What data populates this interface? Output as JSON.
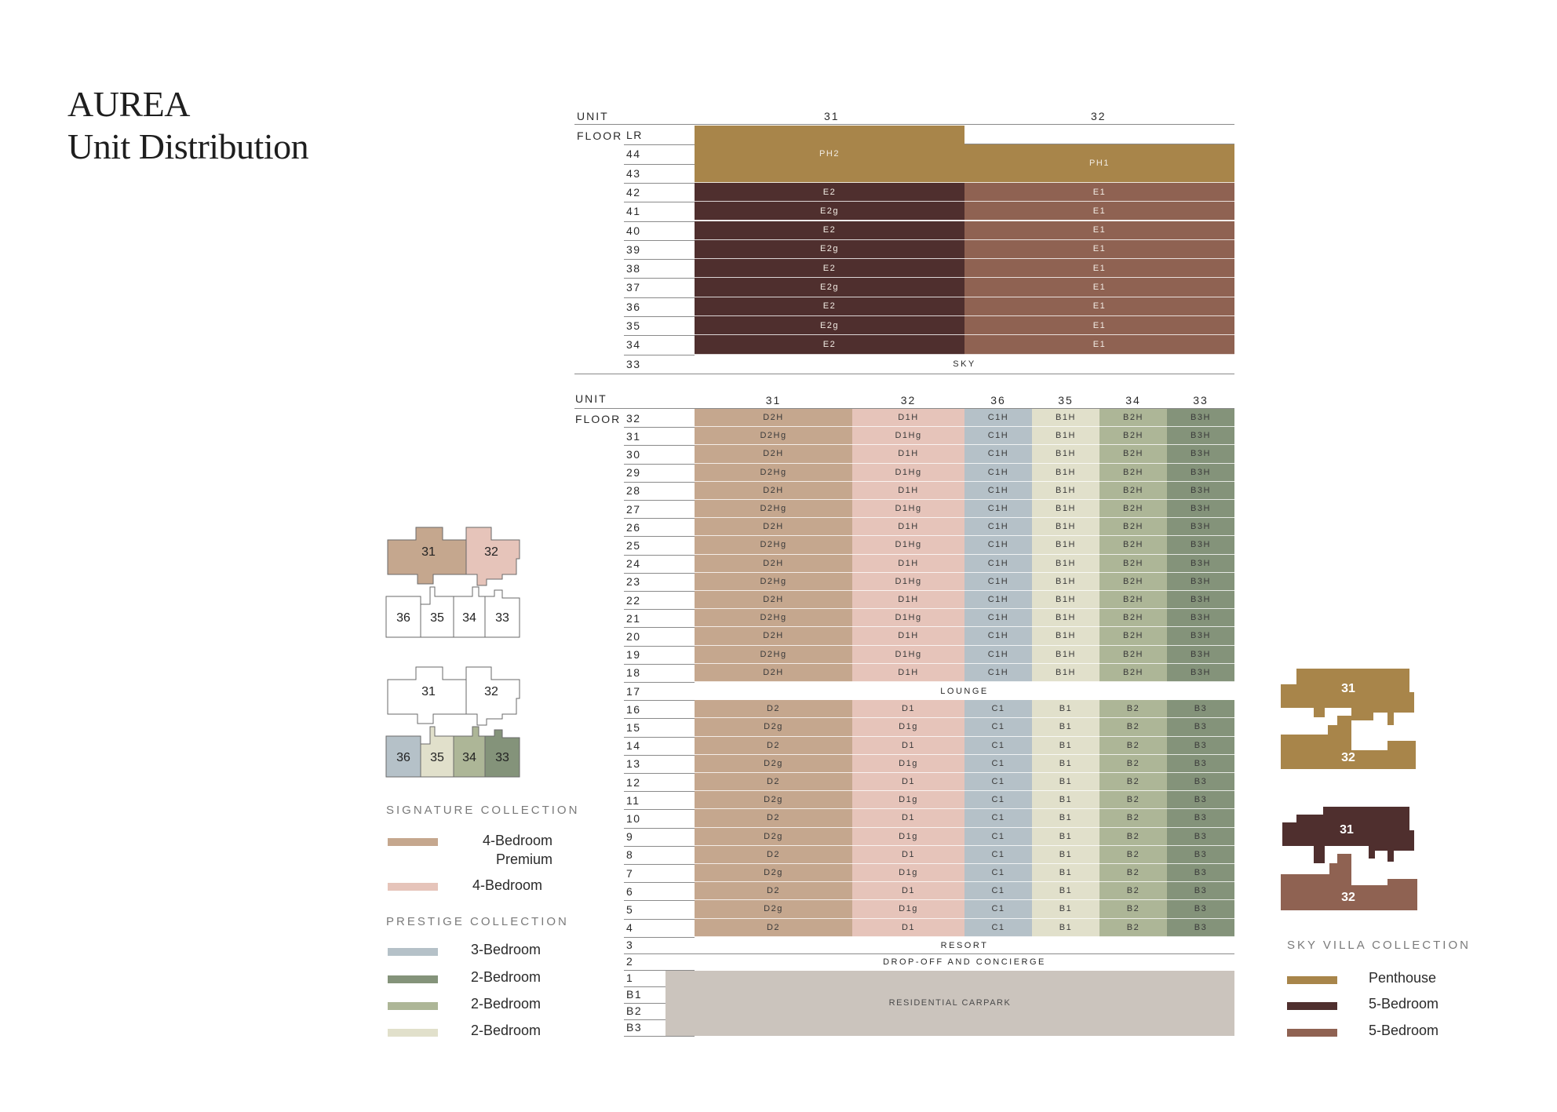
{
  "title": {
    "line1": "AUREA",
    "line2": "Unit Distribution"
  },
  "colors": {
    "ph": "#a8854a",
    "e2": "#4f2f2e",
    "e1": "#8f6252",
    "d2": "#c5a78e",
    "d1": "#e6c4ba",
    "c1": "#b5c1c8",
    "b1": "#e1e0cb",
    "b2": "#adb697",
    "b3": "#84937a",
    "carpark": "#cbc4bd"
  },
  "upper_table": {
    "unit_label": "UNIT",
    "floor_label": "FLOOR",
    "units": [
      "31",
      "32"
    ],
    "floors": [
      "LR",
      "44",
      "43",
      "42",
      "41",
      "40",
      "39",
      "38",
      "37",
      "36",
      "35",
      "34",
      "33"
    ],
    "penthouse": [
      "PH2",
      "PH1"
    ],
    "rows": [
      {
        "floor": "42",
        "u31": "E2",
        "u32": "E1"
      },
      {
        "floor": "41",
        "u31": "E2g",
        "u32": "E1"
      },
      {
        "floor": "40",
        "u31": "E2",
        "u32": "E1"
      },
      {
        "floor": "39",
        "u31": "E2g",
        "u32": "E1"
      },
      {
        "floor": "38",
        "u31": "E2",
        "u32": "E1"
      },
      {
        "floor": "37",
        "u31": "E2g",
        "u32": "E1"
      },
      {
        "floor": "36",
        "u31": "E2",
        "u32": "E1"
      },
      {
        "floor": "35",
        "u31": "E2g",
        "u32": "E1"
      },
      {
        "floor": "34",
        "u31": "E2",
        "u32": "E1"
      }
    ],
    "sky_label": "SKY"
  },
  "lower_table": {
    "unit_label": "UNIT",
    "floor_label": "FLOOR",
    "units": [
      "31",
      "32",
      "36",
      "35",
      "34",
      "33"
    ],
    "upper_rows": [
      {
        "floor": "32",
        "cells": [
          "D2H",
          "D1H",
          "C1H",
          "B1H",
          "B2H",
          "B3H"
        ]
      },
      {
        "floor": "31",
        "cells": [
          "D2Hg",
          "D1Hg",
          "C1H",
          "B1H",
          "B2H",
          "B3H"
        ]
      },
      {
        "floor": "30",
        "cells": [
          "D2H",
          "D1H",
          "C1H",
          "B1H",
          "B2H",
          "B3H"
        ]
      },
      {
        "floor": "29",
        "cells": [
          "D2Hg",
          "D1Hg",
          "C1H",
          "B1H",
          "B2H",
          "B3H"
        ]
      },
      {
        "floor": "28",
        "cells": [
          "D2H",
          "D1H",
          "C1H",
          "B1H",
          "B2H",
          "B3H"
        ]
      },
      {
        "floor": "27",
        "cells": [
          "D2Hg",
          "D1Hg",
          "C1H",
          "B1H",
          "B2H",
          "B3H"
        ]
      },
      {
        "floor": "26",
        "cells": [
          "D2H",
          "D1H",
          "C1H",
          "B1H",
          "B2H",
          "B3H"
        ]
      },
      {
        "floor": "25",
        "cells": [
          "D2Hg",
          "D1Hg",
          "C1H",
          "B1H",
          "B2H",
          "B3H"
        ]
      },
      {
        "floor": "24",
        "cells": [
          "D2H",
          "D1H",
          "C1H",
          "B1H",
          "B2H",
          "B3H"
        ]
      },
      {
        "floor": "23",
        "cells": [
          "D2Hg",
          "D1Hg",
          "C1H",
          "B1H",
          "B2H",
          "B3H"
        ]
      },
      {
        "floor": "22",
        "cells": [
          "D2H",
          "D1H",
          "C1H",
          "B1H",
          "B2H",
          "B3H"
        ]
      },
      {
        "floor": "21",
        "cells": [
          "D2Hg",
          "D1Hg",
          "C1H",
          "B1H",
          "B2H",
          "B3H"
        ]
      },
      {
        "floor": "20",
        "cells": [
          "D2H",
          "D1H",
          "C1H",
          "B1H",
          "B2H",
          "B3H"
        ]
      },
      {
        "floor": "19",
        "cells": [
          "D2Hg",
          "D1Hg",
          "C1H",
          "B1H",
          "B2H",
          "B3H"
        ]
      },
      {
        "floor": "18",
        "cells": [
          "D2H",
          "D1H",
          "C1H",
          "B1H",
          "B2H",
          "B3H"
        ]
      }
    ],
    "lounge": {
      "floor": "17",
      "label": "LOUNGE"
    },
    "lower_rows": [
      {
        "floor": "16",
        "cells": [
          "D2",
          "D1",
          "C1",
          "B1",
          "B2",
          "B3"
        ]
      },
      {
        "floor": "15",
        "cells": [
          "D2g",
          "D1g",
          "C1",
          "B1",
          "B2",
          "B3"
        ]
      },
      {
        "floor": "14",
        "cells": [
          "D2",
          "D1",
          "C1",
          "B1",
          "B2",
          "B3"
        ]
      },
      {
        "floor": "13",
        "cells": [
          "D2g",
          "D1g",
          "C1",
          "B1",
          "B2",
          "B3"
        ]
      },
      {
        "floor": "12",
        "cells": [
          "D2",
          "D1",
          "C1",
          "B1",
          "B2",
          "B3"
        ]
      },
      {
        "floor": "11",
        "cells": [
          "D2g",
          "D1g",
          "C1",
          "B1",
          "B2",
          "B3"
        ]
      },
      {
        "floor": "10",
        "cells": [
          "D2",
          "D1",
          "C1",
          "B1",
          "B2",
          "B3"
        ]
      },
      {
        "floor": "9",
        "cells": [
          "D2g",
          "D1g",
          "C1",
          "B1",
          "B2",
          "B3"
        ]
      },
      {
        "floor": "8",
        "cells": [
          "D2",
          "D1",
          "C1",
          "B1",
          "B2",
          "B3"
        ]
      },
      {
        "floor": "7",
        "cells": [
          "D2g",
          "D1g",
          "C1",
          "B1",
          "B2",
          "B3"
        ]
      },
      {
        "floor": "6",
        "cells": [
          "D2",
          "D1",
          "C1",
          "B1",
          "B2",
          "B3"
        ]
      },
      {
        "floor": "5",
        "cells": [
          "D2g",
          "D1g",
          "C1",
          "B1",
          "B2",
          "B3"
        ]
      },
      {
        "floor": "4",
        "cells": [
          "D2",
          "D1",
          "C1",
          "B1",
          "B2",
          "B3"
        ]
      }
    ],
    "resort": {
      "floor": "3",
      "label": "RESORT"
    },
    "dropoff": {
      "floor": "2",
      "label": "DROP-OFF AND CONCIERGE"
    },
    "carpark": {
      "floors": [
        "1",
        "B1",
        "B2",
        "B3"
      ],
      "label": "RESIDENTIAL CARPARK"
    }
  },
  "keyplans": {
    "top": [
      "31",
      "32",
      "36",
      "35",
      "34",
      "33"
    ],
    "bottom": [
      "31",
      "32",
      "36",
      "35",
      "34",
      "33"
    ],
    "sky_top": [
      "31",
      "32"
    ],
    "sky_bottom": [
      "31",
      "32"
    ]
  },
  "legend": {
    "signature": {
      "heading": "SIGNATURE COLLECTION",
      "items": [
        {
          "color": "#c5a78e",
          "line1": "4-Bedroom",
          "line2": "Premium"
        },
        {
          "color": "#e6c4ba",
          "line1": "4-Bedroom"
        }
      ]
    },
    "prestige": {
      "heading": "PRESTIGE COLLECTION",
      "items": [
        {
          "color": "#b5c1c8",
          "label": "3-Bedroom"
        },
        {
          "color": "#84937a",
          "label": "2-Bedroom"
        },
        {
          "color": "#adb697",
          "label": "2-Bedroom"
        },
        {
          "color": "#e1e0cb",
          "label": "2-Bedroom"
        }
      ]
    },
    "sky_villa": {
      "heading": "SKY VILLA COLLECTION",
      "items": [
        {
          "color": "#a8854a",
          "label": "Penthouse"
        },
        {
          "color": "#4f2f2e",
          "label": "5-Bedroom"
        },
        {
          "color": "#8f6252",
          "label": "5-Bedroom"
        }
      ]
    }
  }
}
